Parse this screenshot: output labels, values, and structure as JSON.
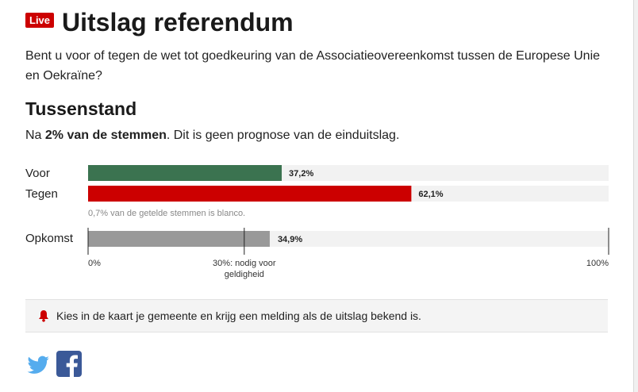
{
  "header": {
    "live_badge": "Live",
    "title": "Uitslag referendum",
    "question": "Bent u voor of tegen de wet tot goedkeuring van de Associatieovereenkomst tussen de Europese Unie en Oekraïne?"
  },
  "status": {
    "heading": "Tussenstand",
    "note_prefix": "Na ",
    "note_bold": "2% van de stemmen",
    "note_suffix": ". Dit is geen prognose van de einduitslag."
  },
  "chart_data": {
    "type": "bar",
    "orientation": "horizontal",
    "unit": "%",
    "xlim": [
      0,
      100
    ],
    "results": [
      {
        "category": "Voor",
        "value": 37.2,
        "value_label": "37,2%",
        "color": "#3b7350"
      },
      {
        "category": "Tegen",
        "value": 62.1,
        "value_label": "62,1%",
        "color": "#cc0000"
      }
    ],
    "blank_note": "0,7% van de getelde stemmen is blanco.",
    "turnout": {
      "category": "Opkomst",
      "value": 34.9,
      "value_label": "34,9%",
      "color": "#999999"
    },
    "threshold": {
      "value": 30,
      "label_line1": "30%: nodig voor",
      "label_line2": "geldigheid"
    },
    "axis_labels": {
      "min": "0%",
      "max": "100%"
    },
    "track_color": "#f2f2f2"
  },
  "callout": {
    "icon": "bell-icon",
    "text": "Kies in de kaart je gemeente en krijg een melding als de uitslag bekend is."
  },
  "social": {
    "icons": [
      "twitter-icon",
      "facebook-icon"
    ]
  },
  "colors": {
    "accent": "#cc0000",
    "twitter": "#55acee",
    "facebook": "#3b5998"
  }
}
